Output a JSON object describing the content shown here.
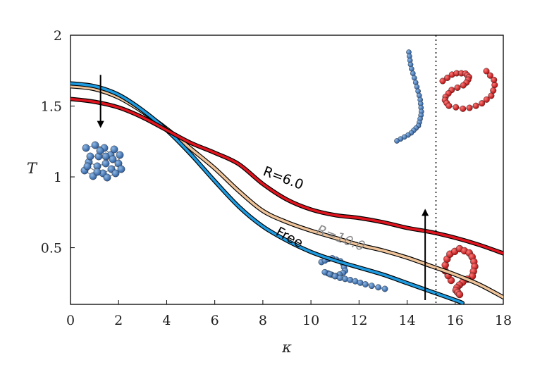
{
  "chart_data": {
    "type": "line",
    "xlabel": "κ",
    "ylabel": "T",
    "xlim": [
      0,
      18
    ],
    "ylim": [
      0.1,
      2.0
    ],
    "xticks": [
      "0",
      "2",
      "4",
      "6",
      "8",
      "10",
      "12",
      "14",
      "16",
      "18"
    ],
    "yticks": [
      "0.5",
      "1",
      "1.5",
      "2"
    ],
    "grid": false,
    "series": [
      {
        "name": "Free",
        "color": "#1e9be0",
        "x": [
          0,
          1,
          2,
          3,
          4,
          5,
          6,
          7,
          8,
          9,
          10,
          11,
          12,
          13,
          14,
          15,
          16,
          16.3
        ],
        "y": [
          1.66,
          1.64,
          1.58,
          1.47,
          1.33,
          1.16,
          0.97,
          0.79,
          0.65,
          0.55,
          0.47,
          0.41,
          0.36,
          0.31,
          0.25,
          0.19,
          0.13,
          0.11
        ]
      },
      {
        "name": "R=10.0",
        "color": "#f0c49a",
        "x": [
          0,
          1,
          2,
          3,
          4,
          5,
          6,
          7,
          8,
          9,
          10,
          11,
          12,
          13,
          14,
          15,
          16,
          17,
          18
        ],
        "y": [
          1.64,
          1.62,
          1.56,
          1.46,
          1.34,
          1.2,
          1.06,
          0.9,
          0.76,
          0.68,
          0.62,
          0.57,
          0.52,
          0.48,
          0.43,
          0.37,
          0.31,
          0.24,
          0.15
        ]
      },
      {
        "name": "R=6.0",
        "color": "#e0141e",
        "x": [
          0,
          1,
          2,
          3,
          4,
          5,
          6,
          7,
          8,
          9,
          10,
          11,
          12,
          13,
          14,
          15,
          16,
          17,
          18
        ],
        "y": [
          1.55,
          1.53,
          1.49,
          1.42,
          1.33,
          1.24,
          1.17,
          1.09,
          0.95,
          0.84,
          0.77,
          0.73,
          0.71,
          0.68,
          0.64,
          0.61,
          0.57,
          0.52,
          0.46
        ]
      }
    ],
    "annotations": {
      "vline_x": 15.2,
      "arrow_down": {
        "x": 1.25,
        "y_from": 1.72,
        "y_to": 1.37
      },
      "arrow_up": {
        "x": 14.75,
        "y_from": 0.13,
        "y_to": 0.75
      }
    }
  }
}
